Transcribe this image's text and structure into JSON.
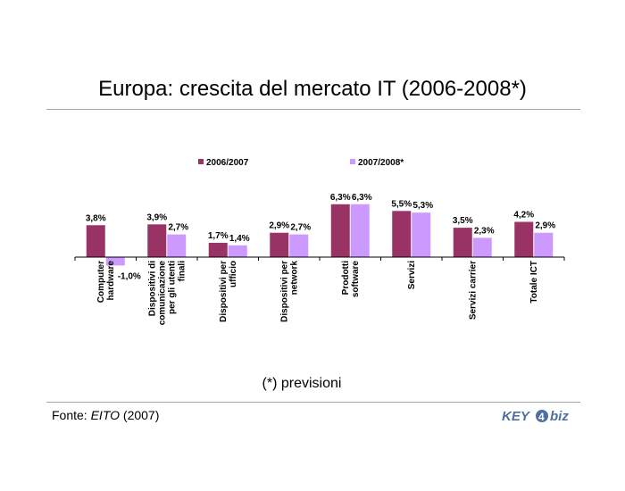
{
  "title": "Europa: crescita del mercato IT (2006-2008*)",
  "footnote": "(*) previsioni",
  "source": {
    "prefix": "Fonte: ",
    "name": "EITO",
    "suffix": " (2007)"
  },
  "logo": {
    "text_main": "KEY",
    "text_accent": "biz",
    "digit": "4"
  },
  "colors": {
    "series1": "#993366",
    "series2": "#cc99ff",
    "rule": "#a6a6a6",
    "logo_blue": "#4f6f9f"
  },
  "chart_data": {
    "type": "bar",
    "categories": [
      [
        "Computer",
        "hardware"
      ],
      [
        "Dispositivi di",
        "comunicazione",
        "per gli utenti",
        "finali"
      ],
      [
        "Dispositivi per",
        "ufficio"
      ],
      [
        "Dispositivi per",
        "network"
      ],
      [
        "Prodotti",
        "software"
      ],
      [
        "Servizi"
      ],
      [
        "Servizi carrier"
      ],
      [
        "Totale ICT"
      ]
    ],
    "series": [
      {
        "name": "2006/2007",
        "values": [
          3.8,
          3.9,
          1.7,
          2.9,
          6.3,
          5.5,
          3.5,
          4.2
        ],
        "labels": [
          "3,8%",
          "3,9%",
          "1,7%",
          "2,9%",
          "6,3%",
          "5,5%",
          "3,5%",
          "4,2%"
        ]
      },
      {
        "name": "2007/2008*",
        "values": [
          -1.0,
          2.7,
          1.4,
          2.7,
          6.3,
          5.3,
          2.3,
          2.9
        ],
        "labels": [
          "-1,0%",
          "2,7%",
          "1,4%",
          "2,7%",
          "6,3%",
          "5,3%",
          "2,3%",
          "2,9%"
        ]
      }
    ],
    "legend": "top",
    "grid": false
  }
}
